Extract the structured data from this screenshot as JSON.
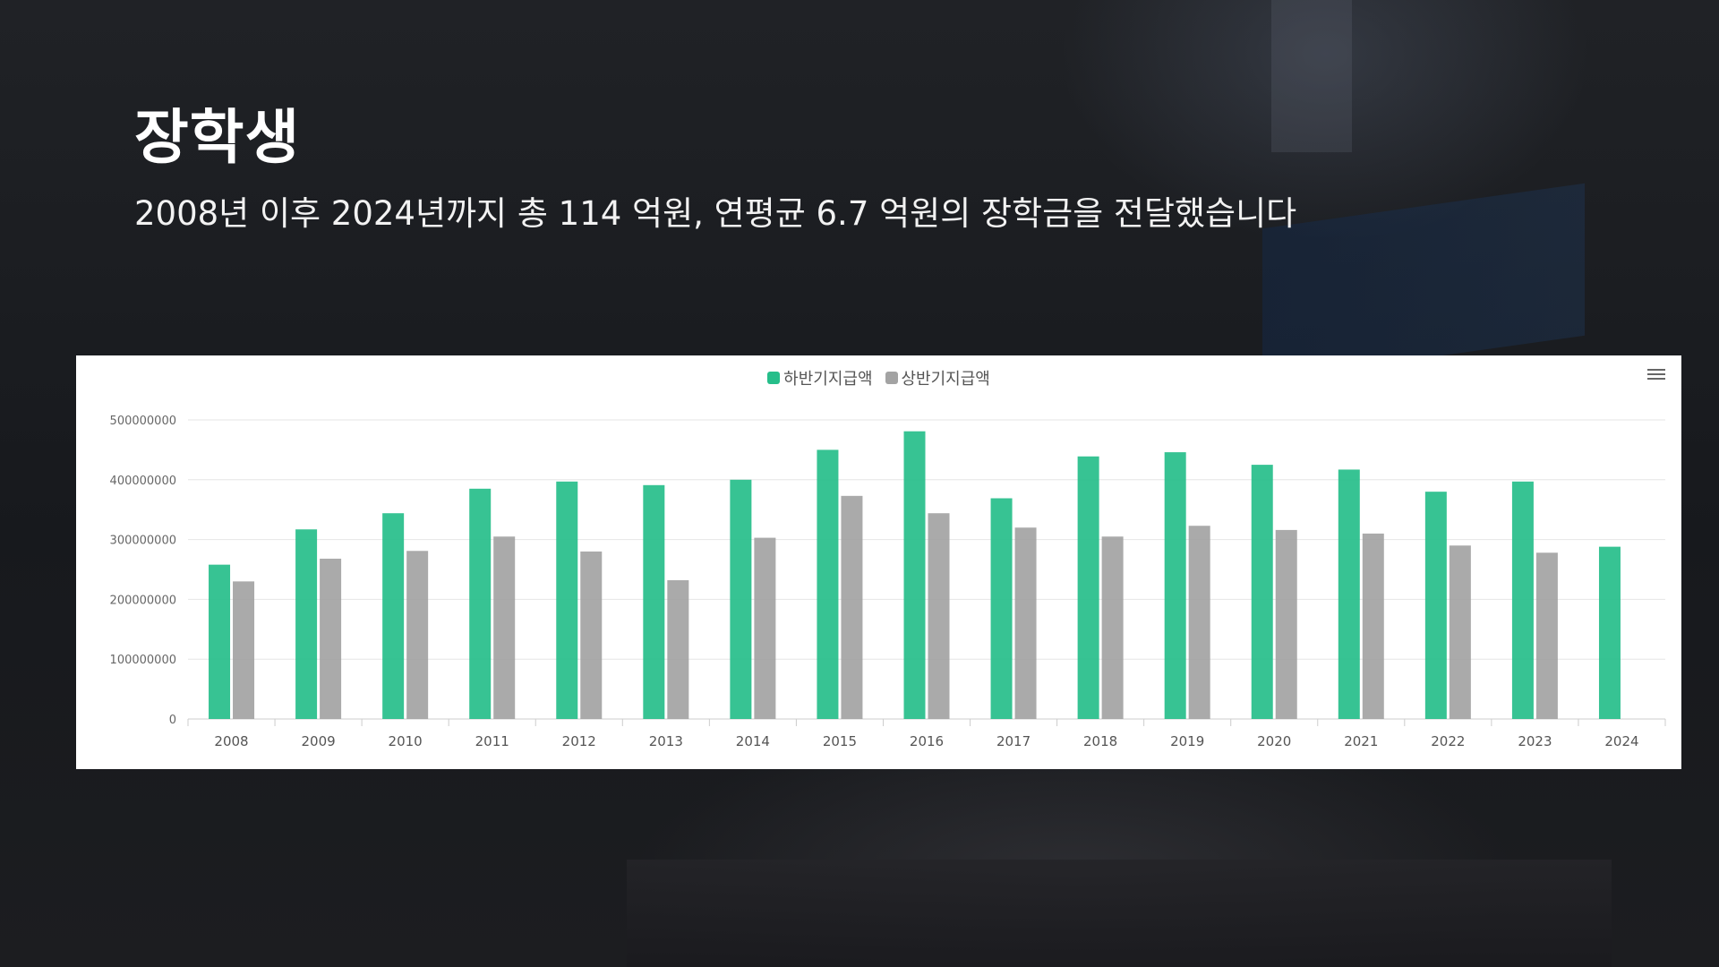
{
  "header": {
    "title": "장학생",
    "subtitle": "2008년 이후 2024년까지 총 114 억원, 연평균 6.7 억원의 장학금을 전달했습니다"
  },
  "chart_data": {
    "type": "bar",
    "title": "",
    "xlabel": "",
    "ylabel": "",
    "ylim": [
      0,
      500000000
    ],
    "yticks": [
      "0",
      "100000000",
      "200000000",
      "300000000",
      "400000000",
      "500000000"
    ],
    "categories": [
      "2008",
      "2009",
      "2010",
      "2011",
      "2012",
      "2013",
      "2014",
      "2015",
      "2016",
      "2017",
      "2018",
      "2019",
      "2020",
      "2021",
      "2022",
      "2023",
      "2024"
    ],
    "series": [
      {
        "name": "하반기지급액",
        "color": "#26be8a",
        "values": [
          258000000,
          317000000,
          344000000,
          385000000,
          397000000,
          391000000,
          400000000,
          450000000,
          481000000,
          369000000,
          439000000,
          446000000,
          425000000,
          417000000,
          380000000,
          397000000,
          288000000
        ]
      },
      {
        "name": "상반기지급액",
        "color": "#a3a3a3",
        "values": [
          230000000,
          268000000,
          281000000,
          305000000,
          280000000,
          232000000,
          303000000,
          373000000,
          344000000,
          320000000,
          305000000,
          323000000,
          316000000,
          310000000,
          290000000,
          278000000,
          null
        ]
      }
    ],
    "grid": true,
    "legend_position": "top-center"
  },
  "toolbar": {
    "menu_icon": "hamburger-menu-icon"
  }
}
